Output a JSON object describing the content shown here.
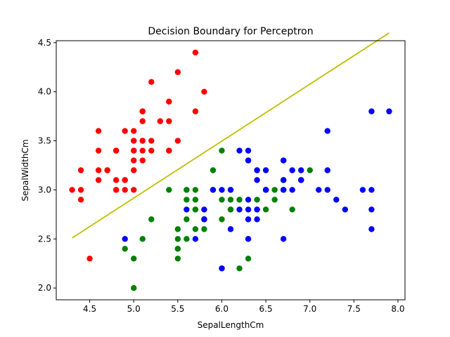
{
  "chart_data": {
    "type": "scatter",
    "title": "Decision Boundary for Perceptron",
    "xlabel": "SepalLengthCm",
    "ylabel": "SepalWidthCm",
    "xlim": [
      4.12,
      8.08
    ],
    "ylim": [
      1.88,
      4.52
    ],
    "xticks": [
      "4.5",
      "5.0",
      "5.5",
      "6.0",
      "6.5",
      "7.0",
      "7.5",
      "8.0"
    ],
    "yticks": [
      "2.0",
      "2.5",
      "3.0",
      "3.5",
      "4.0",
      "4.5"
    ],
    "grid": false,
    "series": [
      {
        "color": "#ff0000",
        "points": [
          [
            5.1,
            3.5
          ],
          [
            4.9,
            3.0
          ],
          [
            4.7,
            3.2
          ],
          [
            4.6,
            3.1
          ],
          [
            5.0,
            3.6
          ],
          [
            5.4,
            3.9
          ],
          [
            4.6,
            3.4
          ],
          [
            5.0,
            3.4
          ],
          [
            4.4,
            2.9
          ],
          [
            4.9,
            3.1
          ],
          [
            5.4,
            3.7
          ],
          [
            4.8,
            3.4
          ],
          [
            4.8,
            3.0
          ],
          [
            4.3,
            3.0
          ],
          [
            5.8,
            4.0
          ],
          [
            5.7,
            4.4
          ],
          [
            5.4,
            3.9
          ],
          [
            5.1,
            3.5
          ],
          [
            5.7,
            3.8
          ],
          [
            5.1,
            3.8
          ],
          [
            5.4,
            3.4
          ],
          [
            5.1,
            3.7
          ],
          [
            4.6,
            3.6
          ],
          [
            5.1,
            3.3
          ],
          [
            4.8,
            3.4
          ],
          [
            5.0,
            3.0
          ],
          [
            5.0,
            3.4
          ],
          [
            5.2,
            3.5
          ],
          [
            5.2,
            3.4
          ],
          [
            4.7,
            3.2
          ],
          [
            4.8,
            3.1
          ],
          [
            5.4,
            3.4
          ],
          [
            5.2,
            4.1
          ],
          [
            5.5,
            4.2
          ],
          [
            4.9,
            3.1
          ],
          [
            5.0,
            3.2
          ],
          [
            5.5,
            3.5
          ],
          [
            4.9,
            3.6
          ],
          [
            4.4,
            3.0
          ],
          [
            5.1,
            3.4
          ],
          [
            5.0,
            3.5
          ],
          [
            4.5,
            2.3
          ],
          [
            4.4,
            3.2
          ],
          [
            5.0,
            3.5
          ],
          [
            5.1,
            3.8
          ],
          [
            4.8,
            3.0
          ],
          [
            5.1,
            3.8
          ],
          [
            4.6,
            3.2
          ],
          [
            5.3,
            3.7
          ],
          [
            5.0,
            3.3
          ]
        ]
      },
      {
        "color": "#008000",
        "points": [
          [
            7.0,
            3.2
          ],
          [
            6.4,
            3.2
          ],
          [
            6.9,
            3.1
          ],
          [
            5.5,
            2.3
          ],
          [
            6.5,
            2.8
          ],
          [
            5.7,
            2.8
          ],
          [
            6.3,
            3.3
          ],
          [
            4.9,
            2.4
          ],
          [
            6.6,
            2.9
          ],
          [
            5.2,
            2.7
          ],
          [
            5.0,
            2.0
          ],
          [
            5.9,
            3.0
          ],
          [
            6.0,
            2.2
          ],
          [
            6.1,
            2.9
          ],
          [
            5.6,
            2.9
          ],
          [
            6.7,
            3.1
          ],
          [
            5.6,
            3.0
          ],
          [
            5.8,
            2.7
          ],
          [
            6.2,
            2.2
          ],
          [
            5.6,
            2.5
          ],
          [
            5.9,
            3.2
          ],
          [
            6.1,
            2.8
          ],
          [
            6.3,
            2.5
          ],
          [
            6.1,
            2.8
          ],
          [
            6.4,
            2.9
          ],
          [
            6.6,
            3.0
          ],
          [
            6.8,
            2.8
          ],
          [
            6.7,
            3.0
          ],
          [
            6.0,
            2.9
          ],
          [
            5.7,
            2.6
          ],
          [
            5.5,
            2.4
          ],
          [
            5.5,
            2.4
          ],
          [
            5.8,
            2.7
          ],
          [
            6.0,
            2.7
          ],
          [
            5.4,
            3.0
          ],
          [
            6.0,
            3.4
          ],
          [
            6.7,
            3.1
          ],
          [
            6.3,
            2.3
          ],
          [
            5.6,
            3.0
          ],
          [
            5.5,
            2.5
          ],
          [
            5.5,
            2.6
          ],
          [
            6.1,
            3.0
          ],
          [
            5.8,
            2.6
          ],
          [
            5.0,
            2.3
          ],
          [
            5.6,
            2.7
          ],
          [
            5.7,
            3.0
          ],
          [
            5.7,
            2.9
          ],
          [
            6.2,
            2.9
          ],
          [
            5.1,
            2.5
          ],
          [
            5.7,
            2.8
          ]
        ]
      },
      {
        "color": "#0000ff",
        "points": [
          [
            6.3,
            3.3
          ],
          [
            5.8,
            2.7
          ],
          [
            7.1,
            3.0
          ],
          [
            6.3,
            2.9
          ],
          [
            6.5,
            3.0
          ],
          [
            7.6,
            3.0
          ],
          [
            4.9,
            2.5
          ],
          [
            7.3,
            2.9
          ],
          [
            6.7,
            2.5
          ],
          [
            7.2,
            3.6
          ],
          [
            6.5,
            3.2
          ],
          [
            6.4,
            2.7
          ],
          [
            6.8,
            3.0
          ],
          [
            5.7,
            2.5
          ],
          [
            5.8,
            2.8
          ],
          [
            6.4,
            3.2
          ],
          [
            6.5,
            3.0
          ],
          [
            7.7,
            3.8
          ],
          [
            7.7,
            2.6
          ],
          [
            6.0,
            2.2
          ],
          [
            6.9,
            3.2
          ],
          [
            5.6,
            2.8
          ],
          [
            7.7,
            2.8
          ],
          [
            6.3,
            2.7
          ],
          [
            6.7,
            3.3
          ],
          [
            7.2,
            3.2
          ],
          [
            6.2,
            2.8
          ],
          [
            6.1,
            3.0
          ],
          [
            6.4,
            2.8
          ],
          [
            7.2,
            3.0
          ],
          [
            7.4,
            2.8
          ],
          [
            7.9,
            3.8
          ],
          [
            6.4,
            2.8
          ],
          [
            6.3,
            2.8
          ],
          [
            6.1,
            2.6
          ],
          [
            7.7,
            3.0
          ],
          [
            6.3,
            3.4
          ],
          [
            6.4,
            3.1
          ],
          [
            6.0,
            3.0
          ],
          [
            6.9,
            3.1
          ],
          [
            6.7,
            3.1
          ],
          [
            6.9,
            3.1
          ],
          [
            5.8,
            2.7
          ],
          [
            6.8,
            3.2
          ],
          [
            6.7,
            3.3
          ],
          [
            6.7,
            3.0
          ],
          [
            6.3,
            2.5
          ],
          [
            6.5,
            3.0
          ],
          [
            6.2,
            3.4
          ],
          [
            5.9,
            3.0
          ]
        ]
      }
    ],
    "boundary_line": {
      "color": "#bfbf00",
      "x": [
        4.3,
        7.9
      ],
      "y": [
        2.51,
        4.6
      ]
    }
  }
}
